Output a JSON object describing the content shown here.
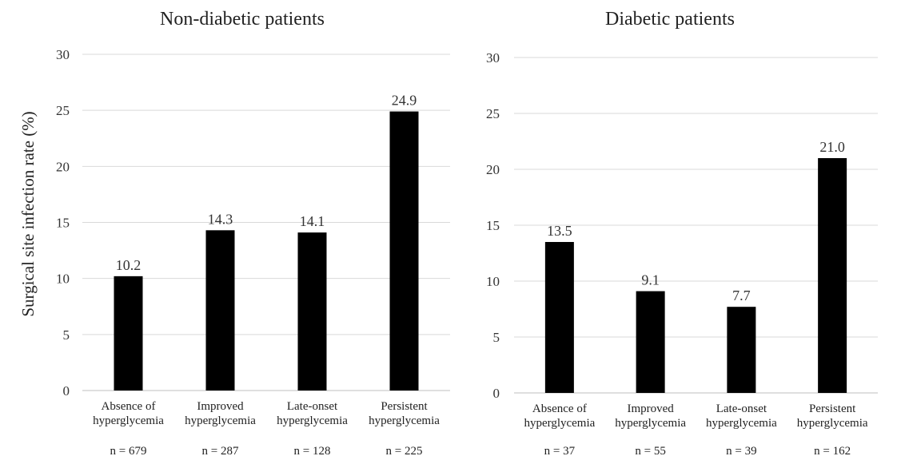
{
  "shared": {
    "ylabel": "Surgical site infection rate  (%)"
  },
  "chart_data": [
    {
      "type": "bar",
      "title": "Non-diabetic patients",
      "ylabel": "Surgical site infection rate  (%)",
      "xlabel": "",
      "ylim": [
        0,
        30
      ],
      "yticks": [
        0,
        5,
        10,
        15,
        20,
        25,
        30
      ],
      "grid": true,
      "categories": [
        [
          "Absence of",
          "hyperglycemia"
        ],
        [
          "Improved",
          "hyperglycemia"
        ],
        [
          "Late-onset",
          "hyperglycemia"
        ],
        [
          "Persistent",
          "hyperglycemia"
        ]
      ],
      "values": [
        10.2,
        14.3,
        14.1,
        24.9
      ],
      "data_labels": [
        "10.2",
        "14.3",
        "14.1",
        "24.9"
      ],
      "n_labels": [
        "n = 679",
        "n = 287",
        "n = 128",
        "n = 225"
      ],
      "bar_color": "#000000"
    },
    {
      "type": "bar",
      "title": "Diabetic patients",
      "ylabel": "",
      "xlabel": "",
      "ylim": [
        0,
        30
      ],
      "yticks": [
        0,
        5,
        10,
        15,
        20,
        25,
        30
      ],
      "grid": true,
      "categories": [
        [
          "Absence of",
          "hyperglycemia"
        ],
        [
          "Improved",
          "hyperglycemia"
        ],
        [
          "Late-onset",
          "hyperglycemia"
        ],
        [
          "Persistent",
          "hyperglycemia"
        ]
      ],
      "values": [
        13.5,
        9.1,
        7.7,
        21.0
      ],
      "data_labels": [
        "13.5",
        "9.1",
        "7.7",
        "21.0"
      ],
      "n_labels": [
        "n = 37",
        "n = 55",
        "n = 39",
        "n = 162"
      ],
      "bar_color": "#000000"
    }
  ],
  "colors": {
    "grid": "#d9d9d9",
    "axis": "#bfbfbf",
    "text": "#222222",
    "bar": "#000000"
  }
}
